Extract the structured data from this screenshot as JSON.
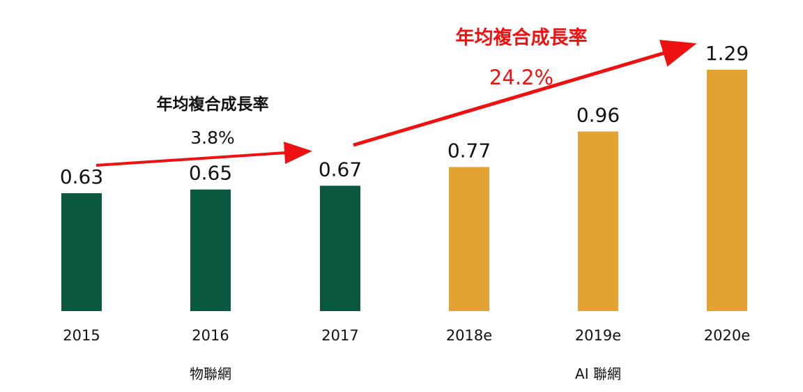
{
  "colors": {
    "iot": "#0b5841",
    "ai": "#e3a332",
    "arrow": "#ee1111"
  },
  "chart_data": {
    "type": "bar",
    "categories": [
      "2015",
      "2016",
      "2017",
      "2018e",
      "2019e",
      "2020e"
    ],
    "values": [
      0.63,
      0.65,
      0.67,
      0.77,
      0.96,
      1.29
    ],
    "value_labels": [
      "0.63",
      "0.65",
      "0.67",
      "0.77",
      "0.96",
      "1.29"
    ],
    "bar_groups": [
      "iot",
      "iot",
      "iot",
      "ai",
      "ai",
      "ai"
    ],
    "ylim": [
      0,
      1.29
    ],
    "grid": false,
    "groups": [
      {
        "key": "iot",
        "label": "物聯網"
      },
      {
        "key": "ai",
        "label": "AI 聯網"
      }
    ],
    "annotations": [
      {
        "title": "年均複合成長率",
        "value": "3.8%",
        "from": "2015",
        "to": "2017"
      },
      {
        "title": "年均複合成長率",
        "value": "24.2%",
        "from": "2017",
        "to": "2020e"
      }
    ]
  }
}
